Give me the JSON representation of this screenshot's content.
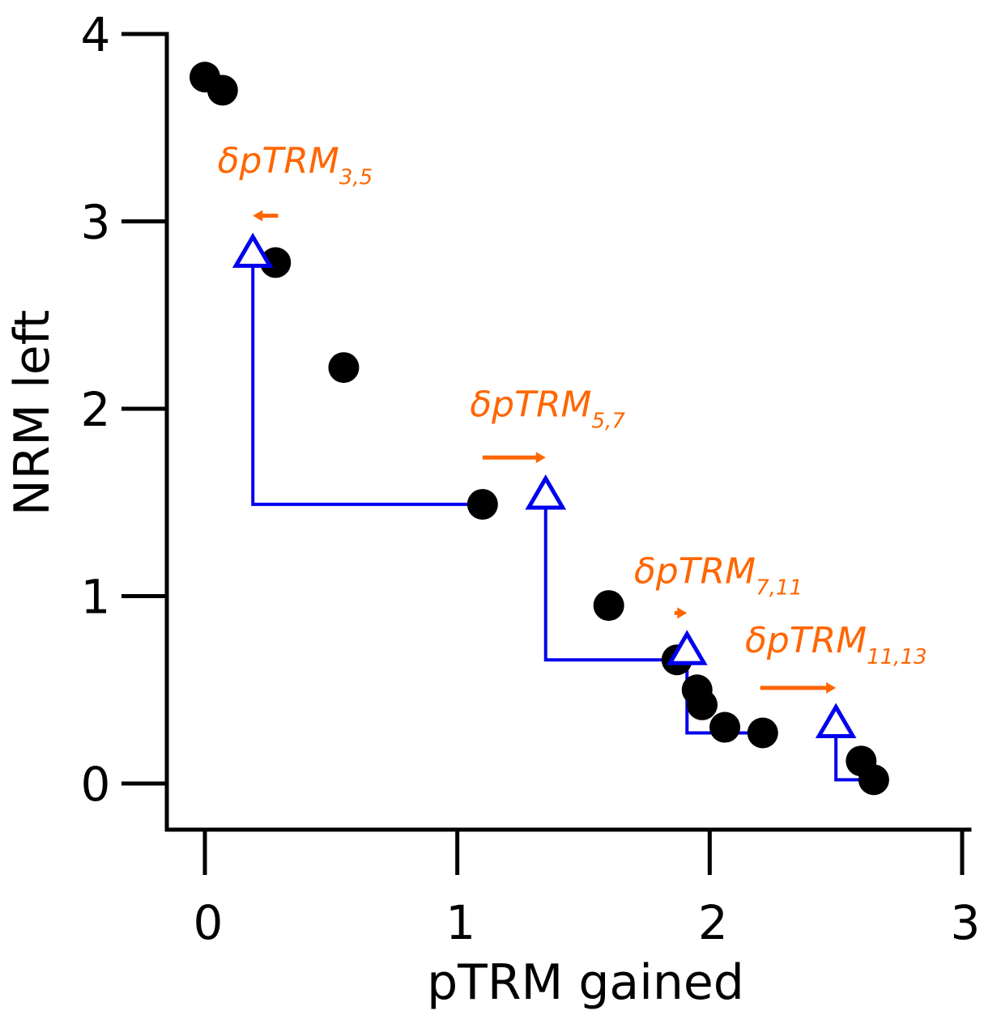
{
  "chart_data": {
    "type": "scatter",
    "xlabel": "pTRM gained",
    "ylabel": "NRM left",
    "xlim": [
      -0.15,
      3.05
    ],
    "ylim": [
      -0.25,
      4.0
    ],
    "x_ticks": [
      0,
      1,
      2,
      3
    ],
    "x_tick_labels": [
      "0",
      "1",
      "2",
      "3"
    ],
    "y_ticks": [
      0,
      1,
      2,
      3,
      4
    ],
    "y_tick_labels": [
      "0",
      "1",
      "2",
      "3",
      "4"
    ],
    "grid": false,
    "colors": {
      "points": "#000000",
      "checks": "#0000ee",
      "delta": "#ff6600"
    },
    "points": [
      {
        "x": 0.0,
        "y": 3.77
      },
      {
        "x": 0.07,
        "y": 3.7
      },
      {
        "x": 0.28,
        "y": 2.78
      },
      {
        "x": 0.55,
        "y": 2.22
      },
      {
        "x": 1.1,
        "y": 1.49
      },
      {
        "x": 1.6,
        "y": 0.95
      },
      {
        "x": 1.87,
        "y": 0.66
      },
      {
        "x": 1.95,
        "y": 0.5
      },
      {
        "x": 1.97,
        "y": 0.42
      },
      {
        "x": 2.06,
        "y": 0.3
      },
      {
        "x": 2.21,
        "y": 0.27
      },
      {
        "x": 2.6,
        "y": 0.12
      },
      {
        "x": 2.65,
        "y": 0.02
      }
    ],
    "checks": [
      {
        "x": 0.19,
        "y": 2.78,
        "from_x": 1.1,
        "from_y": 1.49
      },
      {
        "x": 1.35,
        "y": 1.49,
        "from_x": 1.87,
        "from_y": 0.66
      },
      {
        "x": 1.91,
        "y": 0.66,
        "from_x": 2.21,
        "from_y": 0.27
      },
      {
        "x": 2.5,
        "y": 0.27,
        "from_x": 2.6,
        "from_y": 0.02
      }
    ],
    "annotations": [
      {
        "main": "δpTRM",
        "sub": "3,5",
        "x": 0.05,
        "y": 3.26,
        "arrow_x1": 0.29,
        "arrow_x2": 0.19,
        "arrow_y": 3.03
      },
      {
        "main": "δpTRM",
        "sub": "5,7",
        "x": 1.05,
        "y": 1.96,
        "arrow_x1": 1.1,
        "arrow_x2": 1.35,
        "arrow_y": 1.74
      },
      {
        "main": "δpTRM",
        "sub": "7,11",
        "x": 1.7,
        "y": 1.07,
        "arrow_x1": 1.86,
        "arrow_x2": 1.91,
        "arrow_y": 0.91
      },
      {
        "main": "δpTRM",
        "sub": "11,13",
        "x": 2.14,
        "y": 0.7,
        "arrow_x1": 2.2,
        "arrow_x2": 2.5,
        "arrow_y": 0.51
      }
    ]
  }
}
